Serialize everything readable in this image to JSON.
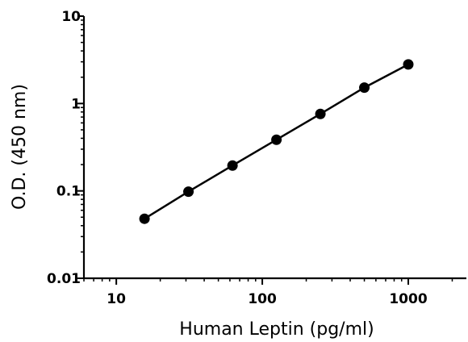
{
  "chart_data": {
    "type": "scatter",
    "title": "",
    "xlabel": "Human Leptin (pg/ml)",
    "ylabel": "O.D. (450 nm)",
    "x_scale": "log",
    "y_scale": "log",
    "xlim": [
      6,
      2500
    ],
    "ylim": [
      0.01,
      10
    ],
    "x_ticks": [
      {
        "value": 10,
        "label": "10"
      },
      {
        "value": 100,
        "label": "100"
      },
      {
        "value": 1000,
        "label": "1000"
      }
    ],
    "y_ticks": [
      {
        "value": 0.01,
        "label": "0.01"
      },
      {
        "value": 0.1,
        "label": "0.1"
      },
      {
        "value": 1,
        "label": "1"
      },
      {
        "value": 10,
        "label": "10"
      }
    ],
    "grid": false,
    "series": [
      {
        "color": "#000000",
        "points": [
          {
            "x": 15.6,
            "y": 0.048
          },
          {
            "x": 31.2,
            "y": 0.098
          },
          {
            "x": 62.5,
            "y": 0.195
          },
          {
            "x": 125,
            "y": 0.385
          },
          {
            "x": 250,
            "y": 0.76
          },
          {
            "x": 500,
            "y": 1.52
          },
          {
            "x": 1000,
            "y": 2.8
          }
        ],
        "fit_line": true
      }
    ]
  }
}
